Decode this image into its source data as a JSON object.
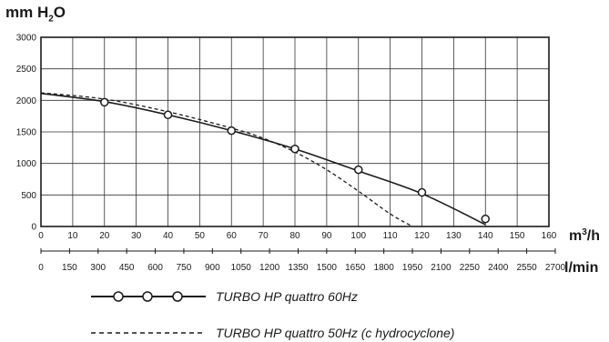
{
  "chart_data": {
    "type": "line",
    "ylabel_prefix": "mm H",
    "ylabel_sub": "2",
    "ylabel_suffix": "O",
    "ylim": [
      0,
      3000
    ],
    "yticks": [
      "0",
      "500",
      "1000",
      "1500",
      "2000",
      "2500",
      "3000"
    ],
    "xlim": [
      0,
      160
    ],
    "x_unit_prefix": "m",
    "x_unit_sup": "3",
    "x_unit_suffix": "/h",
    "xticks": [
      "0",
      "10",
      "20",
      "30",
      "40",
      "50",
      "60",
      "70",
      "80",
      "90",
      "100",
      "110",
      "120",
      "130",
      "140",
      "150",
      "160"
    ],
    "x2_unit": "l/min",
    "x2ticks": [
      "0",
      "150",
      "300",
      "450",
      "600",
      "750",
      "900",
      "1050",
      "1200",
      "1350",
      "1500",
      "1650",
      "1800",
      "1950",
      "2100",
      "2250",
      "2400",
      "2550",
      "2700"
    ],
    "grid": true,
    "legend_position": "bottom",
    "series": [
      {
        "name": "TURBO HP quattro 60Hz",
        "style": "solid-with-circle-markers",
        "x": [
          0,
          20,
          40,
          60,
          80,
          100,
          120,
          140
        ],
        "y": [
          2110,
          1980,
          1770,
          1520,
          1230,
          880,
          520,
          30
        ],
        "markers_x": [
          20,
          40,
          60,
          80,
          100,
          120,
          140
        ],
        "markers_y": [
          1970,
          1770,
          1520,
          1230,
          900,
          540,
          120
        ]
      },
      {
        "name": "TURBO HP quattro 50Hz (c  hydrocyclone)",
        "style": "dashed",
        "x": [
          0,
          20,
          40,
          60,
          70,
          80,
          90,
          100,
          110,
          117
        ],
        "y": [
          2120,
          2020,
          1820,
          1560,
          1400,
          1180,
          900,
          560,
          200,
          0
        ]
      }
    ]
  }
}
